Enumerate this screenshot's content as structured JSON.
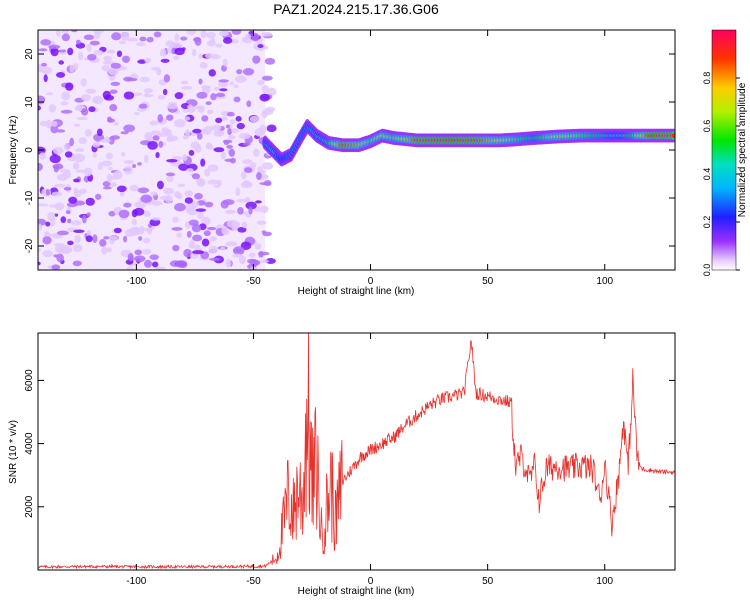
{
  "page": {
    "title": "PAZ1.2024.215.17.36.G06"
  },
  "colors": {
    "snr_line": "#e8302a",
    "axis": "#000000",
    "spectro_background": "#e6ccff"
  },
  "chart_data": [
    {
      "type": "heatmap",
      "title": "PAZ1.2024.215.17.36.G06",
      "xlabel": "Height of straight line (km)",
      "ylabel": "Frequency (Hz)",
      "xlim": [
        -142,
        130
      ],
      "ylim": [
        -25,
        25
      ],
      "x_ticks": [
        "-100",
        "-50",
        "0",
        "50",
        "100"
      ],
      "x_tick_values": [
        -100,
        -50,
        0,
        50,
        100
      ],
      "y_ticks": [
        "-20",
        "-10",
        "0",
        "10",
        "20"
      ],
      "y_tick_values": [
        -20,
        -10,
        0,
        10,
        20
      ],
      "colorbar": {
        "label": "Normalized spectral amplitude",
        "range": [
          0,
          1
        ],
        "ticks": [
          "0.0",
          "0.2",
          "0.4",
          "0.6",
          "0.8"
        ],
        "tick_values": [
          0,
          0.2,
          0.4,
          0.6,
          0.8
        ],
        "colormap": "rainbow (magenta-blue-cyan-green-yellow-red)"
      },
      "noise_region": {
        "x_range": [
          -142,
          -45
        ],
        "freq_range": [
          -25,
          25
        ],
        "amplitude": "0.0-0.1 scattered"
      },
      "ridge": [
        {
          "x": -45,
          "freq": 1.5,
          "amp": 0.3
        },
        {
          "x": -42,
          "freq": 0.0,
          "amp": 0.4
        },
        {
          "x": -38,
          "freq": -2.0,
          "amp": 0.2
        },
        {
          "x": -34,
          "freq": -1.0,
          "amp": 0.3
        },
        {
          "x": -30,
          "freq": 2.5,
          "amp": 0.3
        },
        {
          "x": -27,
          "freq": 5.0,
          "amp": 0.3
        },
        {
          "x": -23,
          "freq": 3.0,
          "amp": 0.4
        },
        {
          "x": -18,
          "freq": 1.5,
          "amp": 0.5
        },
        {
          "x": -12,
          "freq": 1.0,
          "amp": 0.9
        },
        {
          "x": -5,
          "freq": 1.0,
          "amp": 0.8
        },
        {
          "x": 0,
          "freq": 1.8,
          "amp": 0.6
        },
        {
          "x": 5,
          "freq": 3.0,
          "amp": 0.7
        },
        {
          "x": 10,
          "freq": 2.5,
          "amp": 0.6
        },
        {
          "x": 20,
          "freq": 2.0,
          "amp": 0.9
        },
        {
          "x": 35,
          "freq": 2.0,
          "amp": 0.95
        },
        {
          "x": 45,
          "freq": 2.0,
          "amp": 0.9
        },
        {
          "x": 55,
          "freq": 2.0,
          "amp": 0.75
        },
        {
          "x": 62,
          "freq": 2.2,
          "amp": 0.6
        },
        {
          "x": 70,
          "freq": 2.5,
          "amp": 0.5
        },
        {
          "x": 80,
          "freq": 2.8,
          "amp": 0.7
        },
        {
          "x": 90,
          "freq": 3.0,
          "amp": 0.6
        },
        {
          "x": 100,
          "freq": 3.0,
          "amp": 0.5
        },
        {
          "x": 105,
          "freq": 3.0,
          "amp": 0.4
        },
        {
          "x": 112,
          "freq": 3.0,
          "amp": 0.55
        },
        {
          "x": 120,
          "freq": 3.0,
          "amp": 0.95
        },
        {
          "x": 130,
          "freq": 3.0,
          "amp": 0.9
        }
      ]
    },
    {
      "type": "line",
      "xlabel": "Height of straight line (km)",
      "ylabel": "SNR (10 * v/v)",
      "xlim": [
        -142,
        130
      ],
      "ylim": [
        0,
        7500
      ],
      "x_ticks": [
        "-100",
        "-50",
        "0",
        "50",
        "100"
      ],
      "x_tick_values": [
        -100,
        -50,
        0,
        50,
        100
      ],
      "y_ticks": [
        "2000",
        "4000",
        "6000"
      ],
      "y_tick_values": [
        2000,
        4000,
        6000
      ],
      "series": [
        {
          "x": [
            -142,
            -120,
            -100,
            -80,
            -60,
            -45,
            -40,
            -37,
            -35,
            -33,
            -31,
            -29,
            -27,
            -25,
            -23,
            -21,
            -19,
            -17,
            -15,
            -12,
            -8,
            -4,
            0,
            5,
            10,
            15,
            20,
            25,
            30,
            35,
            40,
            43,
            45,
            50,
            55,
            60,
            62,
            64,
            66,
            68,
            70,
            72,
            75,
            80,
            85,
            90,
            95,
            98,
            100,
            103,
            106,
            108,
            110,
            112,
            114,
            116,
            120,
            125,
            130
          ],
          "y": [
            100,
            110,
            105,
            100,
            110,
            120,
            400,
            1500,
            2400,
            1800,
            2600,
            2200,
            5200,
            2600,
            3400,
            1200,
            1800,
            2800,
            1500,
            2800,
            3200,
            3600,
            3800,
            4000,
            4200,
            4600,
            4900,
            5200,
            5400,
            5500,
            5600,
            7300,
            5600,
            5500,
            5400,
            5300,
            3200,
            3600,
            3300,
            2800,
            3300,
            2200,
            3200,
            3300,
            3200,
            3300,
            3200,
            2200,
            3400,
            1500,
            3000,
            4800,
            3200,
            6000,
            3400,
            3200,
            3150,
            3100,
            3100
          ]
        }
      ]
    }
  ]
}
